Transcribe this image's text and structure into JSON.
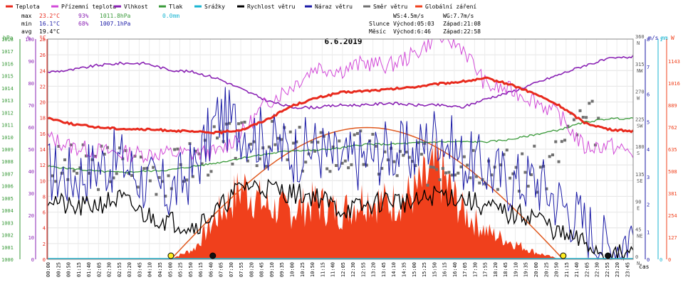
{
  "chart_data": {
    "type": "line",
    "title": "6.6.2019",
    "x_unit_label": "čas",
    "legend": [
      {
        "name": "Teplota",
        "color": "#e8291c"
      },
      {
        "name": "Přízemní teplota",
        "color": "#d24ad8"
      },
      {
        "name": "Vlhkost",
        "color": "#8a22b4"
      },
      {
        "name": "Tlak",
        "color": "#3a9a3a"
      },
      {
        "name": "Srážky",
        "color": "#19b5d2"
      },
      {
        "name": "Rychlost větru",
        "color": "#000000"
      },
      {
        "name": "Náraz větru",
        "color": "#1a1aa6"
      },
      {
        "name": "Směr větru",
        "color": "#707070"
      },
      {
        "name": "Globální záření",
        "color": "#f0401c"
      }
    ],
    "stats": {
      "max_label": "max",
      "max_temp": "23.2°C",
      "max_hum": "93%",
      "max_press": "1011.8hPa",
      "max_rain": "0.0mm",
      "min_label": "min",
      "min_temp": "16.1°C",
      "min_hum": "68%",
      "min_press": "1007.1hPa",
      "avg_label": "avg",
      "avg_temp": "19.4°C"
    },
    "wind_stats": {
      "ws": "WS:4.5m/s",
      "wg": "WG:7.7m/s"
    },
    "sun": {
      "label": "Slunce",
      "rise": "Východ:05:03",
      "set": "Západ:21:08"
    },
    "moon": {
      "label": "Měsíc",
      "rise": "Východ:6:46",
      "set": "Západ:22:58"
    },
    "axes": {
      "pressure": {
        "unit": "hPa",
        "range": [
          1000,
          1018
        ],
        "ticks": [
          "1000",
          "1001",
          "1002",
          "1003",
          "1004",
          "1005",
          "1006",
          "1007",
          "1008",
          "1009",
          "1010",
          "1011",
          "1012",
          "1013",
          "1014",
          "1015",
          "1016",
          "1017",
          "1018"
        ]
      },
      "humidity": {
        "unit": "%",
        "range": [
          0,
          100
        ],
        "ticks": [
          "0",
          "10",
          "20",
          "30",
          "40",
          "50",
          "60",
          "70",
          "80",
          "90",
          "100"
        ]
      },
      "temperature": {
        "unit": "°C",
        "range": [
          0,
          28
        ],
        "ticks": [
          "0",
          "2",
          "4",
          "6",
          "8",
          "10",
          "12",
          "14",
          "16",
          "18",
          "20",
          "22",
          "24",
          "26",
          "28"
        ]
      },
      "wind_dir": {
        "range": [
          0,
          360
        ],
        "ticks": [
          {
            "deg": 0,
            "label": "0",
            "dir": "N"
          },
          {
            "deg": 45,
            "label": "45",
            "dir": "NE"
          },
          {
            "deg": 90,
            "label": "90",
            "dir": "E"
          },
          {
            "deg": 135,
            "label": "135",
            "dir": "SE"
          },
          {
            "deg": 180,
            "label": "180",
            "dir": "S"
          },
          {
            "deg": 225,
            "label": "225",
            "dir": "SW"
          },
          {
            "deg": 270,
            "label": "270",
            "dir": "W"
          },
          {
            "deg": 315,
            "label": "315",
            "dir": "NW"
          },
          {
            "deg": 360,
            "label": "360",
            "dir": "N"
          }
        ]
      },
      "wind_speed": {
        "unit": "m/s",
        "range": [
          0,
          8
        ],
        "ticks": [
          "0",
          "1",
          "2",
          "3",
          "4",
          "5",
          "6",
          "7",
          "8"
        ]
      },
      "rain": {
        "unit": "mm",
        "range": [
          0,
          1
        ],
        "ticks": [
          "0",
          "1"
        ]
      },
      "radiation": {
        "unit": "W",
        "range": [
          0,
          1270
        ],
        "ticks": [
          "0",
          "127",
          "254",
          "381",
          "508",
          "635",
          "762",
          "889",
          "1016",
          "1143"
        ]
      }
    },
    "x_ticks": [
      "00:00",
      "00:25",
      "00:50",
      "01:15",
      "01:40",
      "02:05",
      "02:30",
      "02:55",
      "03:20",
      "03:45",
      "04:10",
      "04:35",
      "05:00",
      "05:25",
      "05:50",
      "06:15",
      "06:40",
      "07:05",
      "07:30",
      "07:55",
      "08:20",
      "08:45",
      "09:10",
      "09:35",
      "10:00",
      "10:25",
      "10:50",
      "11:15",
      "11:40",
      "12:05",
      "12:30",
      "12:55",
      "13:20",
      "13:45",
      "14:10",
      "14:35",
      "15:00",
      "15:25",
      "15:50",
      "16:15",
      "16:40",
      "17:05",
      "17:30",
      "17:55",
      "18:20",
      "18:45",
      "19:10",
      "19:35",
      "20:00",
      "20:25",
      "20:50",
      "21:15",
      "21:40",
      "22:05",
      "22:30",
      "22:55",
      "23:20",
      "23:45"
    ],
    "series": [
      {
        "name": "Teplota",
        "unit": "°C",
        "x": [
          0,
          1,
          2,
          3,
          4,
          5,
          6,
          7,
          8,
          9,
          10,
          11,
          12,
          13,
          14,
          15,
          16,
          17,
          18,
          19,
          20,
          21,
          22,
          23,
          24
        ],
        "values": [
          18.0,
          17.2,
          16.8,
          16.6,
          16.5,
          16.4,
          16.2,
          16.1,
          16.5,
          17.8,
          19.5,
          20.5,
          21.2,
          21.4,
          21.6,
          21.9,
          22.3,
          22.6,
          23.0,
          22.2,
          21.0,
          19.5,
          17.4,
          16.5,
          16.3
        ]
      },
      {
        "name": "Přízemní teplota",
        "unit": "°C",
        "x": [
          0,
          1,
          2,
          3,
          4,
          5,
          6,
          7,
          8,
          9,
          10,
          11,
          12,
          13,
          14,
          15,
          16,
          17,
          18,
          19,
          20,
          21,
          22,
          23,
          24
        ],
        "values": [
          15.5,
          14.3,
          13.8,
          13.5,
          13.4,
          13.5,
          13.4,
          13.6,
          16.2,
          20.0,
          22.0,
          24.5,
          24.0,
          25.0,
          24.6,
          26.0,
          28.5,
          27.0,
          22.0,
          21.5,
          20.2,
          18.2,
          14.2,
          14.5,
          13.5
        ]
      },
      {
        "name": "Vlhkost",
        "unit": "%",
        "x": [
          0,
          1,
          2,
          3,
          4,
          5,
          6,
          7,
          8,
          9,
          10,
          11,
          12,
          13,
          14,
          15,
          16,
          17,
          18,
          19,
          20,
          21,
          22,
          23,
          24
        ],
        "values": [
          85,
          86,
          88,
          89,
          89,
          86,
          85,
          82,
          77,
          72,
          69,
          69,
          70,
          70,
          71,
          70,
          70,
          69,
          73,
          76,
          80,
          84,
          88,
          91,
          92
        ]
      },
      {
        "name": "Tlak",
        "unit": "hPa",
        "x": [
          0,
          1,
          2,
          3,
          4,
          5,
          6,
          7,
          8,
          9,
          10,
          11,
          12,
          13,
          14,
          15,
          16,
          17,
          18,
          19,
          20,
          21,
          22,
          23,
          24
        ],
        "values": [
          1007.6,
          1007.4,
          1007.2,
          1007.1,
          1007.2,
          1007.3,
          1007.6,
          1007.9,
          1008.3,
          1008.6,
          1008.9,
          1008.9,
          1009.1,
          1009.4,
          1009.4,
          1009.5,
          1009.6,
          1009.6,
          1009.6,
          1009.8,
          1010.2,
          1010.6,
          1011.2,
          1011.5,
          1011.5
        ]
      },
      {
        "name": "Rychlost větru",
        "unit": "m/s",
        "x": [
          0,
          1,
          2,
          3,
          4,
          5,
          6,
          7,
          8,
          9,
          10,
          11,
          12,
          13,
          14,
          15,
          16,
          17,
          18,
          19,
          20,
          21,
          22,
          23,
          24
        ],
        "values": [
          2.3,
          1.8,
          2.0,
          2.2,
          1.6,
          1.4,
          1.2,
          1.8,
          2.7,
          2.6,
          2.4,
          2.3,
          1.8,
          1.9,
          2.2,
          2.0,
          2.4,
          2.2,
          1.9,
          1.6,
          1.6,
          0.9,
          0.6,
          0.1,
          0.2
        ]
      },
      {
        "name": "Náraz větru",
        "unit": "m/s",
        "x": [
          0,
          1,
          2,
          3,
          4,
          5,
          6,
          7,
          8,
          9,
          10,
          11,
          12,
          13,
          14,
          15,
          16,
          17,
          18,
          19,
          20,
          21,
          22,
          23,
          24
        ],
        "values": [
          3.2,
          3.0,
          3.4,
          3.6,
          2.8,
          2.4,
          3.3,
          5.2,
          4.8,
          4.3,
          3.9,
          4.1,
          3.5,
          3.7,
          4.0,
          3.8,
          4.7,
          3.6,
          3.3,
          2.8,
          2.9,
          2.1,
          1.3,
          0.4,
          1.0
        ]
      },
      {
        "name": "Globální záření",
        "unit": "W",
        "x": [
          5,
          6,
          7,
          8,
          9,
          10,
          11,
          12,
          13,
          14,
          15,
          16,
          17,
          18,
          19,
          20,
          21
        ],
        "values": [
          0,
          60,
          260,
          420,
          300,
          280,
          330,
          270,
          360,
          320,
          380,
          520,
          280,
          160,
          100,
          40,
          0
        ]
      },
      {
        "name": "Směr větru",
        "unit": "°",
        "x": [
          1,
          3,
          5,
          7,
          9,
          11,
          13,
          15,
          17,
          19,
          20.5,
          21.5,
          22.5,
          23.5
        ],
        "values": [
          150,
          155,
          140,
          185,
          190,
          175,
          175,
          150,
          175,
          145,
          145,
          215,
          225,
          225
        ]
      }
    ],
    "marker_labels": {
      "sunrise": "05:03",
      "sunset": "21:08",
      "moonrise": "6:46",
      "moonset": "22:58"
    }
  }
}
